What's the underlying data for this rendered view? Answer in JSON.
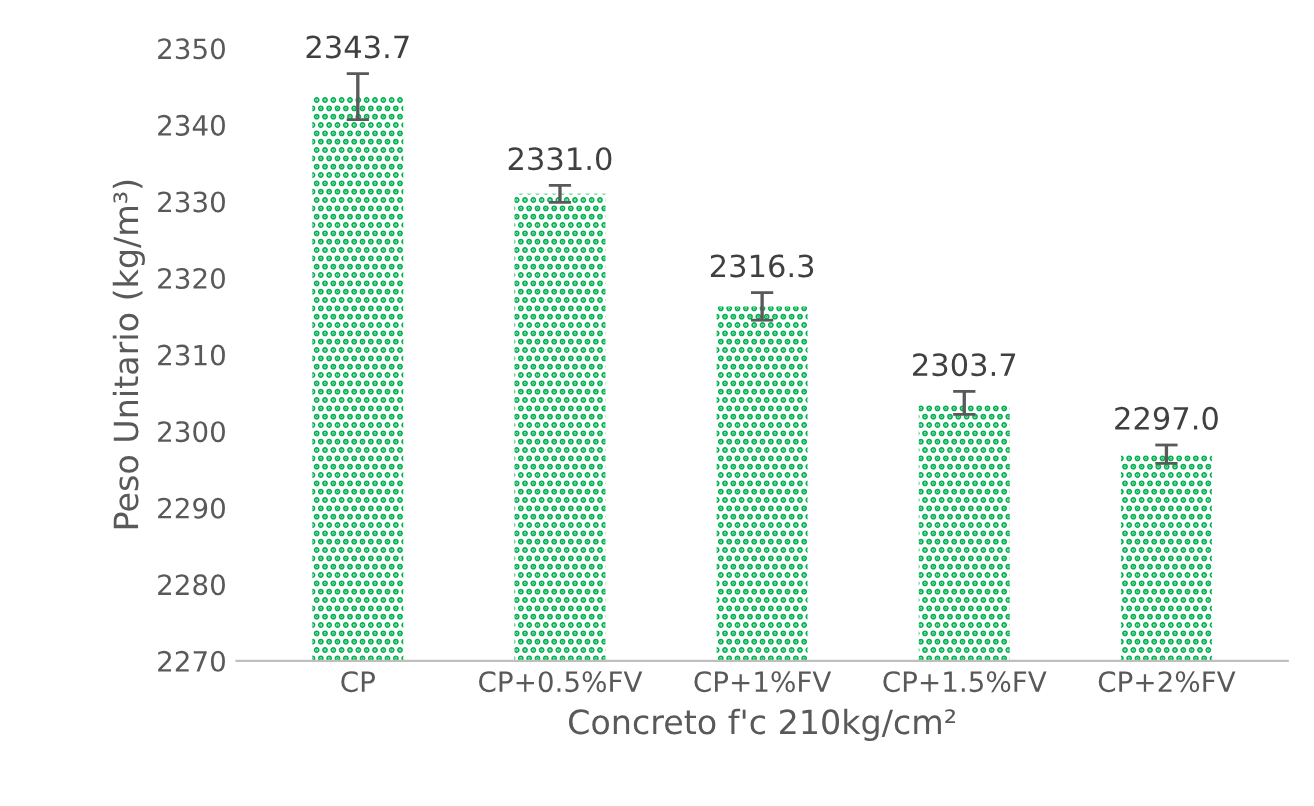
{
  "chart_data": {
    "type": "bar",
    "xlabel": "Concreto f'c 210kg/cm²",
    "ylabel": "Peso Unitario (kg/m³)",
    "categories": [
      "CP",
      "CP+0.5%FV",
      "CP+1%FV",
      "CP+1.5%FV",
      "CP+2%FV"
    ],
    "values": [
      2343.7,
      2331.0,
      2316.3,
      2303.7,
      2297.0
    ],
    "errors": [
      3.0,
      1.1,
      1.8,
      1.5,
      1.2
    ],
    "color": "#00b050",
    "ylim": [
      2270,
      2350
    ],
    "yticks": [
      2270,
      2280,
      2290,
      2300,
      2310,
      2320,
      2330,
      2340,
      2350
    ],
    "value_labels": [
      "2343.7",
      "2331.0",
      "2316.3",
      "2303.7",
      "2297.0"
    ],
    "grid": false
  }
}
